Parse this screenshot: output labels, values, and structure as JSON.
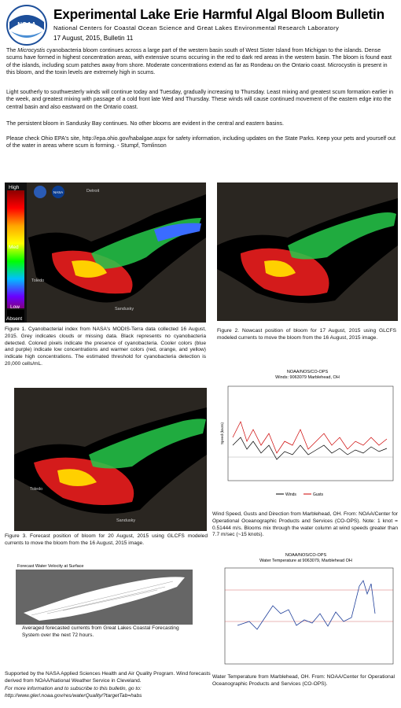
{
  "header": {
    "title": "Experimental Lake Erie Harmful Algal Bloom Bulletin",
    "subtitle": "National Centers for Coastal Ocean Science and Great Lakes Environmental Research Laboratory",
    "date": "17 August, 2015, Bulletin 11",
    "logo": "NOAA"
  },
  "paragraphs": [
    {
      "before": "The ",
      "italic": "Microcystis",
      "after": " cyanobacteria bloom continues across a large part of the western basin south of West Sister Island from Michigan to the islands.  Dense scums have formed in highest concentration areas, with extensive scums occuring in the red to dark red areas in the western basin. The bloom is found east of the islands, including scum patches away from shore.  Moderate concentrations extend as far as Rondeau on the Ontario coast.  Microcystin is present in this bloom, and the toxin levels are extremely high in scums."
    },
    {
      "text": "Light southerly to southwesterly winds will continue today and Tuesday, gradually increasing to Thursday.  Least mixing and greatest scum formation earlier in the week, and greatest mixing with passage of a cold front late Wed and Thursday.  These winds will cause continued movement of the eastern edge into the central basin and also eastward on the Ontario coast."
    },
    {
      "text": "The persistent bloom in Sandusky Bay continues.  No other blooms are evident in the central and eastern basins."
    },
    {
      "text": "Please check Ohio EPA's site, http://epa.ohio.gov/habalgae.aspx for safety information, including updates on the State Parks.   Keep your pets and yourself out of the water in areas where scum is forming.      - Stumpf, Tomlinson"
    }
  ],
  "figures": {
    "fig1": {
      "legend": {
        "high": "High",
        "med": "Med",
        "low": "Low",
        "absent": "Absent"
      },
      "logo": "NASA",
      "places": [
        "Detroit",
        "Toledo",
        "Sandusky"
      ],
      "caption": "Figure 1. Cyanobacterial index from NASA's MODIS-Terra data collected 16 August, 2015. Grey indicates clouds or missing data. Black represents no cyanobacteria detected. Colored pixels indicate the presence of cyanobacteria. Cooler colors (blue and purple) indicate low concentrations and warmer colors (red, orange, and yellow) indicate high concentrations. The estimated threshold for cyanobacteria detection is 20,000 cells/mL."
    },
    "fig2": {
      "caption": "Figure 2. Nowcast position of bloom for 17 August, 2015 using GLCFS modeled currents to move the bloom from the 16 August, 2015 image."
    },
    "fig3": {
      "places": [
        "Toledo",
        "Sandusky"
      ],
      "caption": "Figure 3. Forecast position of bloom for 20 August, 2015 using GLCFS modeled currents to move the bloom from the 16 August, 2015 image."
    },
    "wind": {
      "title": "NOAA/NOS/CO-OPS",
      "subtitle": "Winds: 9063079 Marblehead, OH",
      "legend": [
        "Winds",
        "Gusts"
      ],
      "ylabel": "Speed (knots)",
      "caption": "Wind Speed, Gusts and Direction from Marblehead, OH. From: NOAA/Center for Operational Oceanographic Products and Services (CO-OPS). Note: 1 knot = 0.51444 m/s. Blooms mix through the water column at wind speeds greater than 7.7 m/sec (~15 knots)."
    },
    "currents": {
      "title": "Forecast Water Velocity at Surface",
      "caption": "Averaged forecasted currents from Great Lakes Coastal Forecasting System over the next 72 hours."
    },
    "temperature": {
      "title": "NOAA/NOS/CO-OPS",
      "subtitle": "Water Temperature at 9063079, Marblehead OH",
      "caption": "Water Temperature from Marblehead, OH. From: NOAA/Center for Operational Oceanographic Products and Services (CO-OPS)."
    }
  },
  "footer": {
    "support": "Supported by the NASA Applied Sciences Health and Air Quality Program. Wind forecasts derived from NOAA/National Weather Service in Cleveland.",
    "more": "For more information and to subscribe to this bulletin, go to:",
    "url": "http://www.glerl.noaa.gov/res/waterQuality/?targetTab=habs"
  }
}
